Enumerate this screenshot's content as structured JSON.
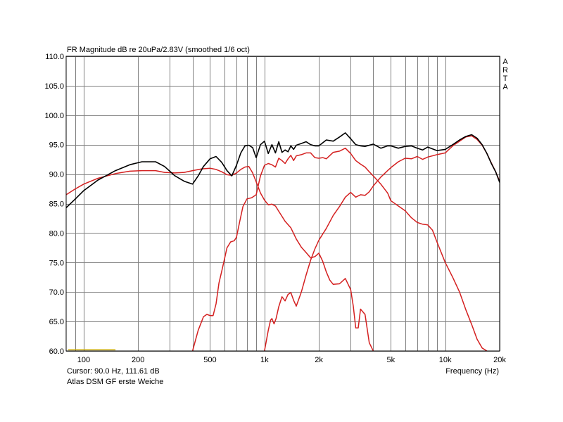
{
  "header": {
    "title": "FR Magnitude dB re 20uPa/2.83V (smoothed 1/6 oct)"
  },
  "side_brand": [
    "A",
    "R",
    "T",
    "A"
  ],
  "footer": {
    "cursor": "Cursor: 90.0 Hz, 111.61 dB",
    "caption": "Atlas DSM GF erste Weiche"
  },
  "colors": {
    "background": "#ffffff",
    "grid": "#808080",
    "frame": "#000000",
    "total": "#000000",
    "drivers": "#d42020",
    "marker": "#c8a800"
  },
  "chart_data": {
    "type": "line",
    "title": "FR Magnitude dB re 20uPa/2.83V (smoothed 1/6 oct)",
    "xlabel": "Frequency (Hz)",
    "ylabel": "",
    "xscale": "log",
    "xlim": [
      80,
      20000
    ],
    "ylim": [
      60,
      110
    ],
    "grid": true,
    "x_ticks": [
      {
        "value": 100,
        "label": "100"
      },
      {
        "value": 200,
        "label": "200"
      },
      {
        "value": 500,
        "label": "500"
      },
      {
        "value": 1000,
        "label": "1k"
      },
      {
        "value": 2000,
        "label": "2k"
      },
      {
        "value": 5000,
        "label": "5k"
      },
      {
        "value": 10000,
        "label": "10k"
      },
      {
        "value": 20000,
        "label": "20k"
      }
    ],
    "x_grid": [
      90,
      100,
      200,
      300,
      400,
      500,
      600,
      700,
      800,
      900,
      1000,
      2000,
      3000,
      4000,
      5000,
      6000,
      7000,
      8000,
      9000,
      10000,
      20000
    ],
    "y_ticks": [
      {
        "value": 60,
        "label": "60.0"
      },
      {
        "value": 65,
        "label": "65.0"
      },
      {
        "value": 70,
        "label": "70.0"
      },
      {
        "value": 75,
        "label": "75.0"
      },
      {
        "value": 80,
        "label": "80.0"
      },
      {
        "value": 85,
        "label": "85.0"
      },
      {
        "value": 90,
        "label": "90.0"
      },
      {
        "value": 95,
        "label": "95.0"
      },
      {
        "value": 100,
        "label": "100.0"
      },
      {
        "value": 105,
        "label": "105.0"
      },
      {
        "value": 110,
        "label": "110.0"
      }
    ],
    "marker_line": {
      "x": [
        82,
        150
      ],
      "y": 60.2
    },
    "series": [
      {
        "role": "total",
        "color": "#000000",
        "x": [
          80,
          90,
          100,
          120,
          150,
          180,
          210,
          250,
          280,
          320,
          360,
          400,
          430,
          460,
          500,
          540,
          580,
          620,
          660,
          700,
          740,
          780,
          820,
          860,
          900,
          950,
          1000,
          1050,
          1100,
          1150,
          1200,
          1250,
          1300,
          1350,
          1400,
          1450,
          1500,
          1600,
          1700,
          1800,
          1900,
          2000,
          2200,
          2400,
          2600,
          2800,
          3000,
          3200,
          3400,
          3600,
          3800,
          4000,
          4400,
          4800,
          5000,
          5500,
          6000,
          6500,
          7000,
          7500,
          8000,
          9000,
          10000,
          11000,
          12000,
          13000,
          14000,
          15000,
          16000,
          17000,
          18000,
          19000,
          20000
        ],
        "y": [
          84.3,
          85.8,
          87.2,
          89.0,
          90.6,
          91.6,
          92.1,
          92.1,
          91.3,
          89.7,
          88.8,
          88.3,
          89.7,
          91.3,
          92.6,
          93.0,
          92.0,
          90.6,
          89.7,
          91.5,
          93.6,
          94.8,
          94.9,
          94.5,
          92.8,
          95.0,
          95.6,
          93.5,
          95.0,
          93.6,
          95.5,
          93.7,
          94.1,
          93.8,
          94.8,
          94.2,
          94.9,
          95.2,
          95.5,
          95.0,
          94.8,
          94.8,
          95.8,
          95.6,
          96.3,
          97.0,
          96.0,
          95.0,
          94.8,
          94.7,
          94.9,
          95.1,
          94.4,
          94.8,
          94.8,
          94.4,
          94.7,
          94.8,
          94.4,
          94.1,
          94.6,
          94.0,
          94.2,
          95.0,
          95.8,
          96.4,
          96.7,
          96.1,
          95.0,
          93.5,
          91.8,
          90.4,
          88.6
        ]
      },
      {
        "role": "woofer",
        "color": "#d42020",
        "x": [
          80,
          90,
          100,
          120,
          150,
          180,
          210,
          250,
          280,
          320,
          360,
          400,
          450,
          500,
          540,
          580,
          620,
          660,
          700,
          740,
          780,
          820,
          860,
          900,
          950,
          1000,
          1050,
          1100,
          1150,
          1200,
          1300,
          1400,
          1500,
          1600,
          1700,
          1800,
          1900,
          2000,
          2100,
          2200,
          2300,
          2400,
          2600,
          2800,
          3000,
          3100,
          3200,
          3300,
          3400,
          3600,
          3800,
          4000
        ],
        "y": [
          86.5,
          87.5,
          88.3,
          89.3,
          90.1,
          90.5,
          90.6,
          90.6,
          90.3,
          90.2,
          90.3,
          90.6,
          90.9,
          91.0,
          90.8,
          90.4,
          89.9,
          89.8,
          90.2,
          90.8,
          91.2,
          91.3,
          90.2,
          88.7,
          86.8,
          85.6,
          84.8,
          84.9,
          84.6,
          83.7,
          82.0,
          80.9,
          79.0,
          77.6,
          76.7,
          75.8,
          76.0,
          76.6,
          75.2,
          73.4,
          72.0,
          71.3,
          71.4,
          72.3,
          70.4,
          67.6,
          63.9,
          63.9,
          67.1,
          66.2,
          61.4,
          60.0
        ]
      },
      {
        "role": "midrange",
        "color": "#d42020",
        "x": [
          400,
          430,
          460,
          480,
          500,
          520,
          540,
          560,
          580,
          600,
          620,
          650,
          680,
          700,
          730,
          760,
          800,
          850,
          900,
          950,
          1000,
          1050,
          1100,
          1150,
          1200,
          1250,
          1300,
          1350,
          1400,
          1450,
          1500,
          1600,
          1700,
          1800,
          1900,
          2000,
          2100,
          2200,
          2400,
          2600,
          2800,
          3000,
          3200,
          3400,
          3600,
          3800,
          4000,
          4400,
          4800,
          5000,
          5500,
          6000,
          6500,
          7000,
          7500,
          8000,
          8500,
          9000,
          10000,
          11000,
          12000,
          13000,
          14000,
          15000,
          16000,
          17000
        ],
        "y": [
          60.0,
          63.5,
          65.8,
          66.2,
          66.0,
          66.0,
          68.0,
          71.5,
          73.5,
          75.5,
          77.5,
          78.5,
          78.7,
          79.3,
          82.0,
          84.5,
          85.8,
          86.0,
          86.5,
          89.7,
          91.5,
          91.8,
          91.6,
          91.2,
          92.7,
          92.3,
          91.8,
          92.6,
          93.2,
          92.3,
          93.1,
          93.3,
          93.6,
          93.6,
          92.8,
          92.7,
          92.8,
          92.6,
          93.7,
          93.9,
          94.4,
          93.5,
          92.3,
          91.7,
          91.2,
          90.4,
          89.7,
          88.3,
          86.8,
          85.5,
          84.6,
          83.8,
          82.6,
          81.8,
          81.5,
          81.4,
          80.5,
          78.5,
          75.0,
          72.5,
          70.0,
          67.0,
          64.5,
          62.0,
          60.5,
          60.0
        ]
      },
      {
        "role": "tweeter",
        "color": "#d42020",
        "x": [
          1000,
          1050,
          1080,
          1100,
          1130,
          1160,
          1200,
          1250,
          1300,
          1350,
          1400,
          1450,
          1500,
          1600,
          1700,
          1800,
          1900,
          2000,
          2200,
          2400,
          2600,
          2800,
          3000,
          3200,
          3400,
          3600,
          3800,
          4000,
          4400,
          4800,
          5000,
          5500,
          6000,
          6500,
          7000,
          7500,
          8000,
          9000,
          10000,
          11000,
          12000,
          13000,
          14000,
          15000,
          16000,
          17000,
          18000,
          19000,
          20000
        ],
        "y": [
          60.0,
          63.5,
          65.2,
          65.5,
          64.6,
          65.5,
          67.5,
          69.2,
          68.5,
          69.6,
          69.9,
          68.6,
          67.6,
          70.0,
          72.9,
          75.4,
          77.3,
          78.8,
          80.8,
          83.0,
          84.5,
          86.1,
          86.9,
          86.1,
          86.5,
          86.4,
          87.0,
          88.0,
          89.5,
          90.6,
          91.1,
          92.1,
          92.7,
          92.6,
          93.0,
          92.5,
          92.9,
          93.3,
          93.6,
          94.8,
          95.6,
          96.3,
          96.5,
          95.9,
          94.9,
          93.5,
          91.9,
          90.4,
          88.8
        ]
      }
    ]
  }
}
